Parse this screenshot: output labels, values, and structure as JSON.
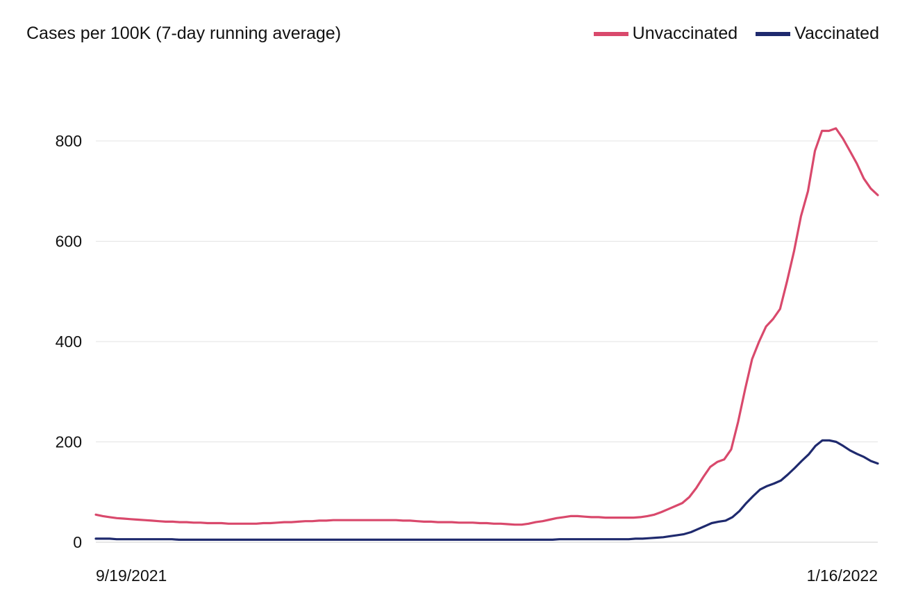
{
  "chart_data": {
    "type": "line",
    "title": "Cases per 100K (7-day running average)",
    "xlabel": "",
    "ylabel": "",
    "x_ticks": [
      "9/19/2021",
      "1/16/2022"
    ],
    "y_ticks": [
      0,
      200,
      400,
      600,
      800
    ],
    "ylim": [
      0,
      900
    ],
    "grid": true,
    "legend_position": "top-right",
    "series": [
      {
        "name": "Unvaccinated",
        "color": "#d9496c",
        "values": [
          55,
          52,
          50,
          48,
          47,
          46,
          45,
          44,
          43,
          42,
          41,
          41,
          40,
          40,
          39,
          39,
          38,
          38,
          38,
          37,
          37,
          37,
          37,
          37,
          38,
          38,
          39,
          40,
          40,
          41,
          42,
          42,
          43,
          43,
          44,
          44,
          44,
          44,
          44,
          44,
          44,
          44,
          44,
          44,
          43,
          43,
          42,
          41,
          41,
          40,
          40,
          40,
          39,
          39,
          39,
          38,
          38,
          37,
          37,
          36,
          35,
          35,
          37,
          40,
          42,
          45,
          48,
          50,
          52,
          52,
          51,
          50,
          50,
          49,
          49,
          49,
          49,
          49,
          50,
          52,
          55,
          60,
          66,
          72,
          78,
          90,
          108,
          130,
          150,
          160,
          165,
          185,
          240,
          305,
          365,
          400,
          430,
          445,
          465,
          520,
          580,
          650,
          700,
          780,
          820,
          820,
          825,
          805,
          780,
          755,
          725,
          705,
          692
        ],
        "ids": [
          "u0",
          "u1",
          "u2",
          "u3",
          "u4",
          "u5",
          "u6",
          "u7",
          "u8",
          "u9",
          "u10",
          "u11",
          "u12",
          "u13",
          "u14",
          "u15",
          "u16",
          "u17",
          "u18",
          "u19",
          "u20",
          "u21",
          "u22",
          "u23",
          "u24",
          "u25",
          "u26",
          "u27",
          "u28",
          "u29",
          "u30",
          "u31",
          "u32",
          "u33",
          "u34",
          "u35",
          "u36",
          "u37",
          "u38",
          "u39",
          "u40",
          "u41",
          "u42",
          "u43",
          "u44",
          "u45",
          "u46",
          "u47",
          "u48",
          "u49",
          "u50",
          "u51",
          "u52",
          "u53",
          "u54",
          "u55",
          "u56",
          "u57",
          "u58",
          "u59",
          "u60",
          "u61",
          "u62",
          "u63",
          "u64",
          "u65",
          "u66",
          "u67",
          "u68",
          "u69",
          "u70",
          "u71",
          "u72",
          "u73",
          "u74",
          "u75",
          "u76",
          "u77",
          "u78",
          "u79",
          "u80",
          "u81",
          "u82",
          "u83",
          "u84",
          "u85",
          "u86",
          "u87",
          "u88",
          "u89",
          "u90",
          "u91",
          "u92",
          "u93",
          "u94",
          "u95",
          "u96",
          "u97",
          "u98",
          "u99",
          "u100",
          "u101",
          "u102",
          "u103",
          "u104",
          "u105",
          "u106",
          "u107",
          "u108",
          "u109",
          "u110",
          "u111",
          "u112"
        ]
      },
      {
        "name": "Vaccinated",
        "color": "#1f2a6e",
        "values": [
          7,
          7,
          7,
          6,
          6,
          6,
          6,
          6,
          6,
          6,
          6,
          6,
          5,
          5,
          5,
          5,
          5,
          5,
          5,
          5,
          5,
          5,
          5,
          5,
          5,
          5,
          5,
          5,
          5,
          5,
          5,
          5,
          5,
          5,
          5,
          5,
          5,
          5,
          5,
          5,
          5,
          5,
          5,
          5,
          5,
          5,
          5,
          5,
          5,
          5,
          5,
          5,
          5,
          5,
          5,
          5,
          5,
          5,
          5,
          5,
          5,
          5,
          5,
          5,
          5,
          5,
          5,
          6,
          6,
          6,
          6,
          6,
          6,
          6,
          6,
          6,
          6,
          6,
          7,
          7,
          8,
          9,
          10,
          12,
          14,
          16,
          20,
          26,
          32,
          38,
          41,
          43,
          50,
          62,
          78,
          92,
          105,
          112,
          117,
          123,
          135,
          148,
          162,
          175,
          192,
          203,
          203,
          200,
          192,
          183,
          176,
          170,
          162,
          157
        ],
        "ids": [
          "v0",
          "v1",
          "v2",
          "v3",
          "v4",
          "v5",
          "v6",
          "v7",
          "v8",
          "v9",
          "v10",
          "v11",
          "v12",
          "v13",
          "v14",
          "v15",
          "v16",
          "v17",
          "v18",
          "v19",
          "v20",
          "v21",
          "v22",
          "v23",
          "v24",
          "v25",
          "v26",
          "v27",
          "v28",
          "v29",
          "v30",
          "v31",
          "v32",
          "v33",
          "v34",
          "v35",
          "v36",
          "v37",
          "v38",
          "v39",
          "v40",
          "v41",
          "v42",
          "v43",
          "v44",
          "v45",
          "v46",
          "v47",
          "v48",
          "v49",
          "v50",
          "v51",
          "v52",
          "v53",
          "v54",
          "v55",
          "v56",
          "v57",
          "v58",
          "v59",
          "v60",
          "v61",
          "v62",
          "v63",
          "v64",
          "v65",
          "v66",
          "v67",
          "v68",
          "v69",
          "v70",
          "v71",
          "v72",
          "v73",
          "v74",
          "v75",
          "v76",
          "v77",
          "v78",
          "v79",
          "v80",
          "v81",
          "v82",
          "v83",
          "v84",
          "v85",
          "v86",
          "v87",
          "v88",
          "v89",
          "v90",
          "v91",
          "v92",
          "v93",
          "v94",
          "v95",
          "v96",
          "v97",
          "v98",
          "v99",
          "v100",
          "v101",
          "v102",
          "v103",
          "v104",
          "v105",
          "v106",
          "v107",
          "v108",
          "v109",
          "v110",
          "v111",
          "v112",
          "v113"
        ]
      }
    ]
  }
}
